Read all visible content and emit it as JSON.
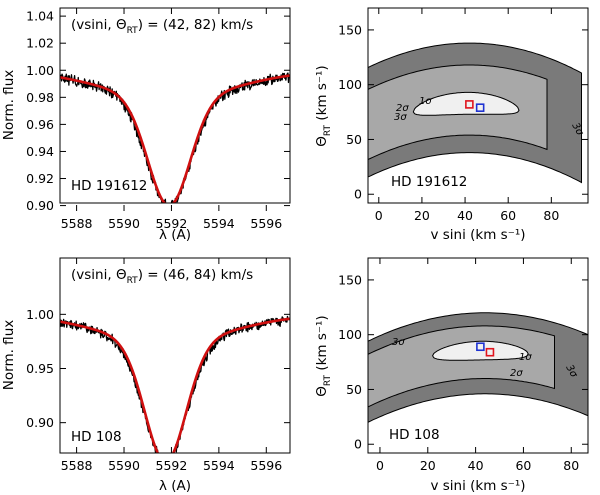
{
  "colors": {
    "observed": "#000000",
    "model": "#d01010",
    "c3": "#7a7a7a",
    "c2": "#a8a8a8",
    "c1": "#d6d6d6",
    "in1": "#f0f0f0",
    "marker_red": "#e0141e",
    "marker_blue": "#1e32d2"
  },
  "chart_data": [
    {
      "id": "p1",
      "type": "line",
      "kind": "spectrum",
      "star": "HD 191612",
      "annotation_prefix": "(vsini, ",
      "annotation_theta": "Θ",
      "annotation_sub": "RT",
      "annotation_suffix": ") = (42, 82) km/s",
      "xlabel": "λ (A)",
      "ylabel": "Norm. flux",
      "xlim": [
        5587.3,
        5597.0
      ],
      "ylim": [
        0.896,
        1.046
      ],
      "xticks": [
        5588,
        5590,
        5592,
        5594,
        5596
      ],
      "yticks": [
        0.9,
        0.92,
        0.94,
        0.96,
        0.98,
        1.0,
        1.02,
        1.04
      ],
      "yfmt": 2,
      "series": [
        {
          "name": "observed",
          "profile": {
            "center": 5591.9,
            "depth": 0.08,
            "sigma": 0.92,
            "wing": 0.02,
            "noise": 0.0035
          }
        },
        {
          "name": "model",
          "profile": {
            "center": 5591.9,
            "depth": 0.08,
            "sigma": 0.88,
            "wing": 0.02
          }
        }
      ]
    },
    {
      "id": "p2",
      "type": "heatmap",
      "kind": "confidence",
      "star": "HD 191612",
      "xlabel": "v sini (km s⁻¹)",
      "ylabel_main": "Θ",
      "ylabel_sub": "RT",
      "ylabel_rest": " (km s⁻¹)",
      "xlim": [
        -5,
        97
      ],
      "ylim": [
        -8,
        170
      ],
      "xticks": [
        0,
        20,
        40,
        60,
        80
      ],
      "yticks": [
        0,
        50,
        100,
        150
      ],
      "contour_labels": [
        "1σ",
        "2σ",
        "3σ",
        "3σ"
      ],
      "contours": {
        "curve_a": 0.0101,
        "center": {
          "x": 42,
          "y": 82
        },
        "sigma3": {
          "up": 56,
          "down": 44,
          "x_range": [
            -5,
            94
          ]
        },
        "sigma2": {
          "up": 36,
          "down": 28,
          "x_range": [
            -5,
            78
          ]
        },
        "sigma1": {
          "up": 11,
          "down": 9,
          "x_range": [
            16,
            65
          ]
        }
      },
      "markers": [
        {
          "name": "best-fit",
          "color": "red",
          "vsini": 42,
          "theta": 82
        },
        {
          "name": "alternative",
          "color": "blue",
          "vsini": 47,
          "theta": 79
        }
      ]
    },
    {
      "id": "p3",
      "type": "line",
      "kind": "spectrum",
      "star": "HD 108",
      "annotation_prefix": "(vsini, ",
      "annotation_theta": "Θ",
      "annotation_sub": "RT",
      "annotation_suffix": ") = (46, 84) km/s",
      "xlabel": "λ (A)",
      "ylabel": "Norm. flux",
      "xlim": [
        5587.3,
        5597.0
      ],
      "ylim": [
        0.872,
        1.052
      ],
      "xticks": [
        5588,
        5590,
        5592,
        5594,
        5596
      ],
      "yticks": [
        0.9,
        0.95,
        1.0
      ],
      "yfmt": 2,
      "series": [
        {
          "name": "observed",
          "profile": {
            "center": 5591.75,
            "depth": 0.111,
            "sigma": 0.9,
            "wing": 0.025,
            "noise": 0.004
          }
        },
        {
          "name": "model",
          "profile": {
            "center": 5591.75,
            "depth": 0.111,
            "sigma": 0.86,
            "wing": 0.025
          }
        }
      ]
    },
    {
      "id": "p4",
      "type": "heatmap",
      "kind": "confidence",
      "star": "HD 108",
      "xlabel": "v sini (km s⁻¹)",
      "ylabel_main": "Θ",
      "ylabel_sub": "RT",
      "ylabel_rest": " (km s⁻¹)",
      "xlim": [
        -5,
        87
      ],
      "ylim": [
        -8,
        170
      ],
      "xticks": [
        0,
        20,
        40,
        60,
        80
      ],
      "yticks": [
        0,
        50,
        100,
        150
      ],
      "contour_labels": [
        "1σ",
        "2σ",
        "3σ",
        "3σ"
      ],
      "contours": {
        "curve_a": 0.0108,
        "center": {
          "x": 44,
          "y": 86
        },
        "sigma3": {
          "up": 34,
          "down": 40,
          "x_range": [
            -5,
            87
          ]
        },
        "sigma2": {
          "up": 22,
          "down": 26,
          "x_range": [
            -5,
            73
          ]
        },
        "sigma1": {
          "up": 8,
          "down": 9,
          "x_range": [
            22,
            62
          ]
        }
      },
      "markers": [
        {
          "name": "blue",
          "color": "blue",
          "vsini": 42,
          "theta": 89
        },
        {
          "name": "red",
          "color": "red",
          "vsini": 46,
          "theta": 84
        }
      ]
    }
  ]
}
